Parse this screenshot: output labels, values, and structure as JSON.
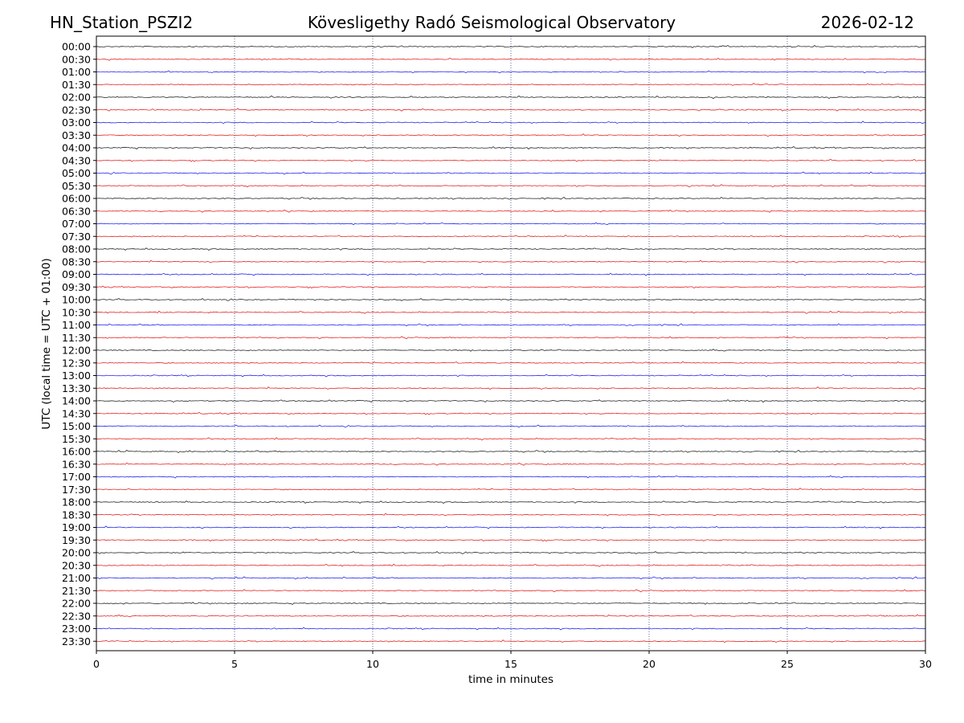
{
  "header": {
    "station": "HN_Station_PSZI2",
    "observatory": "Kövesligethy Radó Seismological Observatory",
    "date": "2026-02-12"
  },
  "chart_data": {
    "type": "line",
    "title": "Kövesligethy Radó Seismological Observatory",
    "xlabel": "time in minutes",
    "ylabel": "UTC (local time = UTC + 01:00)",
    "xlim": [
      0,
      30
    ],
    "x_ticks": [
      "0",
      "5",
      "10",
      "15",
      "20",
      "25",
      "30"
    ],
    "grid": "vertical dotted at x ticks",
    "trace_colors": [
      "#000000",
      "#e00000",
      "#0000ee",
      "#e00000"
    ],
    "series": [
      {
        "row": "00:00",
        "color": "#000000"
      },
      {
        "row": "00:30",
        "color": "#e00000"
      },
      {
        "row": "01:00",
        "color": "#0000ee"
      },
      {
        "row": "01:30",
        "color": "#e00000"
      },
      {
        "row": "02:00",
        "color": "#000000"
      },
      {
        "row": "02:30",
        "color": "#e00000"
      },
      {
        "row": "03:00",
        "color": "#0000ee"
      },
      {
        "row": "03:30",
        "color": "#e00000"
      },
      {
        "row": "04:00",
        "color": "#000000"
      },
      {
        "row": "04:30",
        "color": "#e00000"
      },
      {
        "row": "05:00",
        "color": "#0000ee"
      },
      {
        "row": "05:30",
        "color": "#e00000"
      },
      {
        "row": "06:00",
        "color": "#000000"
      },
      {
        "row": "06:30",
        "color": "#e00000"
      },
      {
        "row": "07:00",
        "color": "#0000ee"
      },
      {
        "row": "07:30",
        "color": "#e00000"
      },
      {
        "row": "08:00",
        "color": "#000000"
      },
      {
        "row": "08:30",
        "color": "#e00000"
      },
      {
        "row": "09:00",
        "color": "#0000ee"
      },
      {
        "row": "09:30",
        "color": "#e00000"
      },
      {
        "row": "10:00",
        "color": "#000000"
      },
      {
        "row": "10:30",
        "color": "#e00000"
      },
      {
        "row": "11:00",
        "color": "#0000ee"
      },
      {
        "row": "11:30",
        "color": "#e00000"
      },
      {
        "row": "12:00",
        "color": "#000000"
      },
      {
        "row": "12:30",
        "color": "#e00000"
      },
      {
        "row": "13:00",
        "color": "#0000ee"
      },
      {
        "row": "13:30",
        "color": "#e00000"
      },
      {
        "row": "14:00",
        "color": "#000000"
      },
      {
        "row": "14:30",
        "color": "#e00000"
      },
      {
        "row": "15:00",
        "color": "#0000ee"
      },
      {
        "row": "15:30",
        "color": "#e00000"
      },
      {
        "row": "16:00",
        "color": "#000000"
      },
      {
        "row": "16:30",
        "color": "#e00000"
      },
      {
        "row": "17:00",
        "color": "#0000ee"
      },
      {
        "row": "17:30",
        "color": "#e00000"
      },
      {
        "row": "18:00",
        "color": "#000000"
      },
      {
        "row": "18:30",
        "color": "#e00000"
      },
      {
        "row": "19:00",
        "color": "#0000ee"
      },
      {
        "row": "19:30",
        "color": "#e00000"
      },
      {
        "row": "20:00",
        "color": "#000000"
      },
      {
        "row": "20:30",
        "color": "#e00000"
      },
      {
        "row": "21:00",
        "color": "#0000ee"
      },
      {
        "row": "21:30",
        "color": "#e00000"
      },
      {
        "row": "22:00",
        "color": "#000000"
      },
      {
        "row": "22:30",
        "color": "#e00000"
      },
      {
        "row": "23:00",
        "color": "#0000ee"
      },
      {
        "row": "23:30",
        "color": "#e00000"
      }
    ]
  }
}
